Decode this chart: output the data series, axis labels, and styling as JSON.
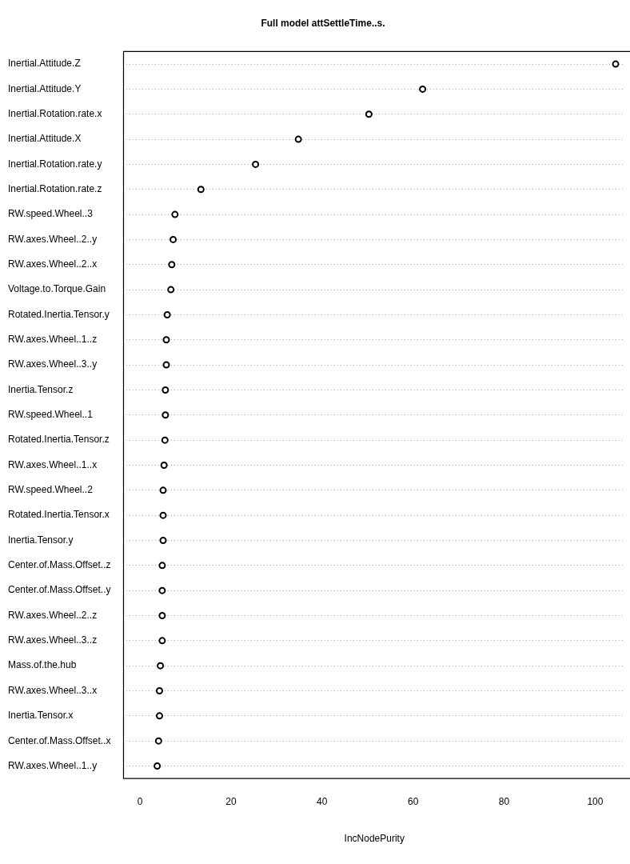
{
  "chart_data": {
    "type": "scatter",
    "orientation": "horizontal",
    "title": "Full model attSettleTime..s.",
    "xlabel": "IncNodePurity",
    "categories": [
      "Inertial.Attitude.Z",
      "Inertial.Attitude.Y",
      "Inertial.Rotation.rate.x",
      "Inertial.Attitude.X",
      "Inertial.Rotation.rate.y",
      "Inertial.Rotation.rate.z",
      "RW.speed.Wheel..3",
      "RW.axes.Wheel..2..y",
      "RW.axes.Wheel..2..x",
      "Voltage.to.Torque.Gain",
      "Rotated.Inertia.Tensor.y",
      "RW.axes.Wheel..1..z",
      "RW.axes.Wheel..3..y",
      "Inertia.Tensor.z",
      "RW.speed.Wheel..1",
      "Rotated.Inertia.Tensor.z",
      "RW.axes.Wheel..1..x",
      "RW.speed.Wheel..2",
      "Rotated.Inertia.Tensor.x",
      "Inertia.Tensor.y",
      "Center.of.Mass.Offset..z",
      "Center.of.Mass.Offset..y",
      "RW.axes.Wheel..2..z",
      "RW.axes.Wheel..3..z",
      "Mass.of.the.hub",
      "RW.axes.Wheel..3..x",
      "Inertia.Tensor.x",
      "Center.of.Mass.Offset..x",
      "RW.axes.Wheel..1..y"
    ],
    "values": [
      104.5,
      62.1,
      50.3,
      34.8,
      25.4,
      13.4,
      7.7,
      7.3,
      7.0,
      6.8,
      6.0,
      5.8,
      5.8,
      5.6,
      5.6,
      5.5,
      5.3,
      5.1,
      5.1,
      5.1,
      4.9,
      4.9,
      4.9,
      4.9,
      4.5,
      4.3,
      4.3,
      4.1,
      3.8
    ],
    "color": "#000000",
    "marker": "circle",
    "grid": "y",
    "xlim": [
      -3.6,
      106.6
    ],
    "xticks": [
      0,
      20,
      40,
      60,
      80,
      100
    ]
  }
}
